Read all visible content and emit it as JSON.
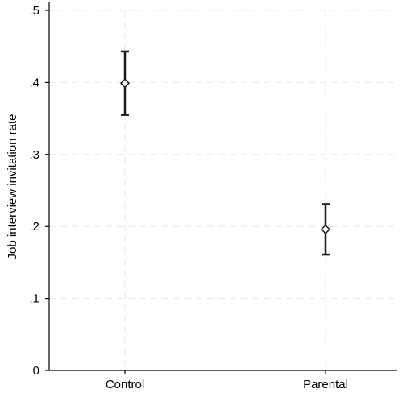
{
  "chart_data": {
    "type": "scatter",
    "title": "",
    "xlabel": "",
    "ylabel": "Job interview invitation rate",
    "categories": [
      "Control",
      "Parental"
    ],
    "series": [
      {
        "values": [
          0.399,
          0.196
        ],
        "ci_low": [
          0.355,
          0.161
        ],
        "ci_high": [
          0.443,
          0.231
        ]
      }
    ],
    "ylim": [
      0,
      0.5
    ],
    "yticks": [
      0,
      0.1,
      0.2,
      0.3,
      0.4,
      0.5
    ],
    "ytick_labels": [
      "0",
      ".1",
      ".2",
      ".3",
      ".4",
      ".5"
    ],
    "grid": true,
    "marker": "hollow-diamond"
  }
}
